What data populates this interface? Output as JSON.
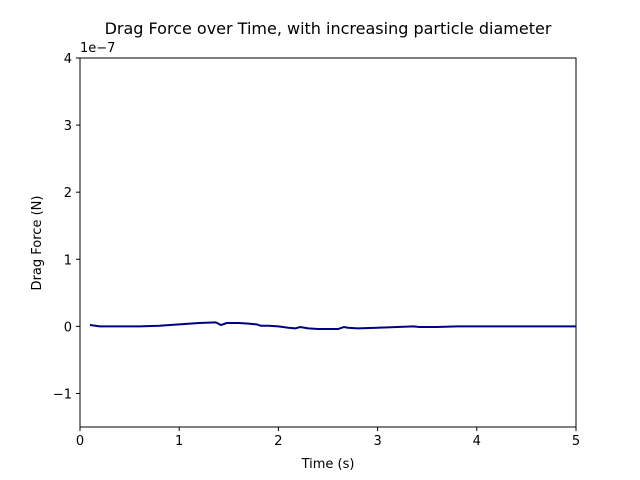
{
  "chart_data": {
    "type": "line",
    "title": "Drag Force over Time, with increasing particle diameter",
    "xlabel": "Time (s)",
    "ylabel": "Drag Force (N)",
    "y_offset_label": "1e−7",
    "xlim": [
      0,
      5
    ],
    "ylim": [
      -1.5,
      4
    ],
    "x_ticks": [
      0,
      1,
      2,
      3,
      4,
      5
    ],
    "x_tick_labels": [
      "0",
      "1",
      "2",
      "3",
      "4",
      "5"
    ],
    "y_ticks": [
      -1,
      0,
      1,
      2,
      3,
      4
    ],
    "y_tick_labels": [
      "−1",
      "0",
      "1",
      "2",
      "3",
      "4"
    ],
    "grid": false,
    "series": [
      {
        "color": "#000080",
        "x": [
          0.1,
          0.2,
          0.4,
          0.6,
          0.8,
          1.0,
          1.2,
          1.37,
          1.42,
          1.48,
          1.55,
          1.6,
          1.7,
          1.78,
          1.82,
          1.9,
          2.0,
          2.1,
          2.17,
          2.22,
          2.3,
          2.4,
          2.5,
          2.6,
          2.66,
          2.7,
          2.8,
          3.0,
          3.2,
          3.36,
          3.42,
          3.6,
          3.8,
          4.0,
          4.5,
          5.0
        ],
        "y": [
          0.02,
          0.0,
          0.0,
          0.0,
          0.01,
          0.03,
          0.05,
          0.06,
          0.02,
          0.05,
          0.05,
          0.05,
          0.04,
          0.03,
          0.01,
          0.01,
          0.0,
          -0.02,
          -0.03,
          -0.01,
          -0.03,
          -0.04,
          -0.04,
          -0.04,
          -0.01,
          -0.02,
          -0.03,
          -0.02,
          -0.01,
          0.0,
          -0.01,
          -0.01,
          0.0,
          0.0,
          0.0,
          0.0
        ]
      }
    ]
  }
}
